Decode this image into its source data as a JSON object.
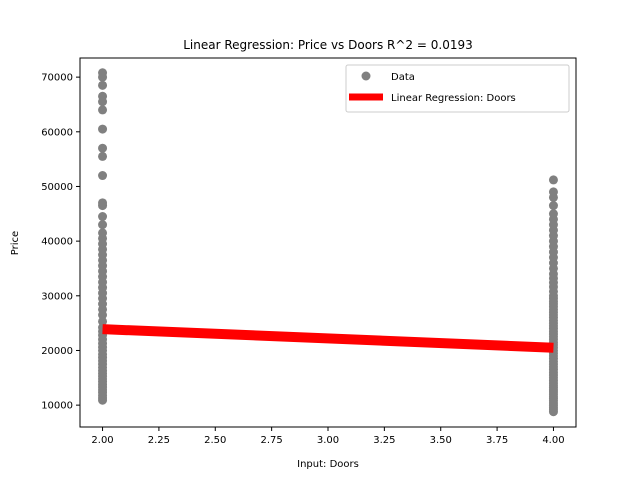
{
  "chart_data": {
    "type": "scatter",
    "title": "Linear Regression: Price vs Doors  R^2 = 0.0193",
    "xlabel": "Input: Doors",
    "ylabel": "Price",
    "xlim": [
      1.9,
      4.1
    ],
    "ylim": [
      6000,
      73500
    ],
    "xticks": [
      2.0,
      2.25,
      2.5,
      2.75,
      3.0,
      3.25,
      3.5,
      3.75,
      4.0
    ],
    "xtick_labels": [
      "2.00",
      "2.25",
      "2.50",
      "2.75",
      "3.00",
      "3.25",
      "3.50",
      "3.75",
      "4.00"
    ],
    "yticks": [
      10000,
      20000,
      30000,
      40000,
      50000,
      60000,
      70000
    ],
    "ytick_labels": [
      "10000",
      "20000",
      "30000",
      "40000",
      "50000",
      "60000",
      "70000"
    ],
    "legend_position": "upper right",
    "series": [
      {
        "name": "Data",
        "kind": "scatter",
        "color": "#808080",
        "points": [
          [
            2,
            10900
          ],
          [
            2,
            11300
          ],
          [
            2,
            11800
          ],
          [
            2,
            12300
          ],
          [
            2,
            12800
          ],
          [
            2,
            13300
          ],
          [
            2,
            13800
          ],
          [
            2,
            14300
          ],
          [
            2,
            14800
          ],
          [
            2,
            15300
          ],
          [
            2,
            15800
          ],
          [
            2,
            16300
          ],
          [
            2,
            16900
          ],
          [
            2,
            17500
          ],
          [
            2,
            18100
          ],
          [
            2,
            18700
          ],
          [
            2,
            19300
          ],
          [
            2,
            20000
          ],
          [
            2,
            20600
          ],
          [
            2,
            21300
          ],
          [
            2,
            22000
          ],
          [
            2,
            22800
          ],
          [
            2,
            23500
          ],
          [
            2,
            24200
          ],
          [
            2,
            25300
          ],
          [
            2,
            26500
          ],
          [
            2,
            27500
          ],
          [
            2,
            28500
          ],
          [
            2,
            29500
          ],
          [
            2,
            30500
          ],
          [
            2,
            31500
          ],
          [
            2,
            32500
          ],
          [
            2,
            33500
          ],
          [
            2,
            34500
          ],
          [
            2,
            35500
          ],
          [
            2,
            36500
          ],
          [
            2,
            37500
          ],
          [
            2,
            38500
          ],
          [
            2,
            39500
          ],
          [
            2,
            40500
          ],
          [
            2,
            41500
          ],
          [
            2,
            43000
          ],
          [
            2,
            44500
          ],
          [
            2,
            46500
          ],
          [
            2,
            47000
          ],
          [
            2,
            52000
          ],
          [
            2,
            55500
          ],
          [
            2,
            57000
          ],
          [
            2,
            60500
          ],
          [
            2,
            64000
          ],
          [
            2,
            65500
          ],
          [
            2,
            66500
          ],
          [
            2,
            68500
          ],
          [
            2,
            70000
          ],
          [
            2,
            70800
          ],
          [
            4,
            8800
          ],
          [
            4,
            9200
          ],
          [
            4,
            9600
          ],
          [
            4,
            10000
          ],
          [
            4,
            10400
          ],
          [
            4,
            10800
          ],
          [
            4,
            11200
          ],
          [
            4,
            11600
          ],
          [
            4,
            12000
          ],
          [
            4,
            12400
          ],
          [
            4,
            12800
          ],
          [
            4,
            13200
          ],
          [
            4,
            13600
          ],
          [
            4,
            14000
          ],
          [
            4,
            14500
          ],
          [
            4,
            15000
          ],
          [
            4,
            15500
          ],
          [
            4,
            16000
          ],
          [
            4,
            16500
          ],
          [
            4,
            17000
          ],
          [
            4,
            17500
          ],
          [
            4,
            18000
          ],
          [
            4,
            18500
          ],
          [
            4,
            19000
          ],
          [
            4,
            19500
          ],
          [
            4,
            20000
          ],
          [
            4,
            20500
          ],
          [
            4,
            21000
          ],
          [
            4,
            21500
          ],
          [
            4,
            22000
          ],
          [
            4,
            22500
          ],
          [
            4,
            23000
          ],
          [
            4,
            23500
          ],
          [
            4,
            24000
          ],
          [
            4,
            24500
          ],
          [
            4,
            25000
          ],
          [
            4,
            25500
          ],
          [
            4,
            26000
          ],
          [
            4,
            26500
          ],
          [
            4,
            27000
          ],
          [
            4,
            27500
          ],
          [
            4,
            28000
          ],
          [
            4,
            28500
          ],
          [
            4,
            29000
          ],
          [
            4,
            29500
          ],
          [
            4,
            30000
          ],
          [
            4,
            30800
          ],
          [
            4,
            31600
          ],
          [
            4,
            32400
          ],
          [
            4,
            33200
          ],
          [
            4,
            34000
          ],
          [
            4,
            35000
          ],
          [
            4,
            36000
          ],
          [
            4,
            37000
          ],
          [
            4,
            38000
          ],
          [
            4,
            39000
          ],
          [
            4,
            40000
          ],
          [
            4,
            41000
          ],
          [
            4,
            42000
          ],
          [
            4,
            43000
          ],
          [
            4,
            44000
          ],
          [
            4,
            45000
          ],
          [
            4,
            46500
          ],
          [
            4,
            48000
          ],
          [
            4,
            49000
          ],
          [
            4,
            51200
          ]
        ]
      },
      {
        "name": "Linear Regression: Doors",
        "kind": "line",
        "color": "#ff0000",
        "x": [
          2,
          4
        ],
        "y": [
          23900,
          20500
        ]
      }
    ]
  }
}
